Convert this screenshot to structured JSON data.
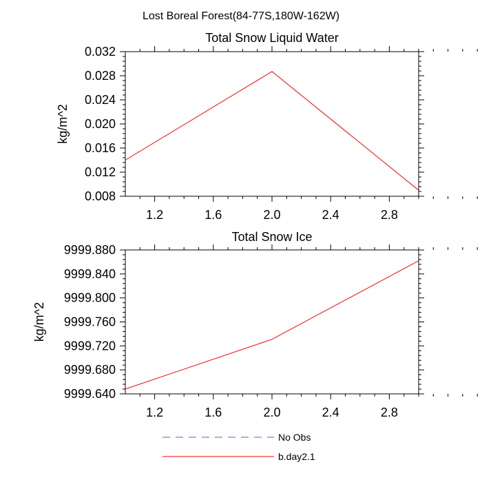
{
  "figure_title": "Lost Boreal Forest(84-77S,180W-162W)",
  "colors": {
    "model": "#ff0000",
    "obs": "#5a5adc",
    "axis": "#000000"
  },
  "chart_data": [
    {
      "type": "line",
      "title": "Total Snow Liquid Water",
      "xlabel": "",
      "ylabel": "kg/m^2",
      "xlim": [
        1.0,
        3.0
      ],
      "ylim": [
        0.008,
        0.032
      ],
      "xticks": [
        1.2,
        1.6,
        2.0,
        2.4,
        2.8
      ],
      "xtick_labels": [
        "1.2",
        "1.6",
        "2.0",
        "2.4",
        "2.8"
      ],
      "yticks": [
        0.008,
        0.012,
        0.016,
        0.02,
        0.024,
        0.028,
        0.032
      ],
      "ytick_labels": [
        "0.008",
        "0.012",
        "0.016",
        "0.020",
        "0.024",
        "0.028",
        "0.032"
      ],
      "series": [
        {
          "name": "b.day2.1",
          "x": [
            1,
            2,
            3
          ],
          "values": [
            0.014,
            0.0287,
            0.009
          ]
        }
      ]
    },
    {
      "type": "line",
      "title": "Total Snow Ice",
      "xlabel": "",
      "ylabel": "kg/m^2",
      "xlim": [
        1.0,
        3.0
      ],
      "ylim": [
        9999.64,
        9999.88
      ],
      "xticks": [
        1.2,
        1.6,
        2.0,
        2.4,
        2.8
      ],
      "xtick_labels": [
        "1.2",
        "1.6",
        "2.0",
        "2.4",
        "2.8"
      ],
      "yticks": [
        9999.64,
        9999.68,
        9999.72,
        9999.76,
        9999.8,
        9999.84,
        9999.88
      ],
      "ytick_labels": [
        "9999.640",
        "9999.680",
        "9999.720",
        "9999.760",
        "9999.800",
        "9999.840",
        "9999.880"
      ],
      "series": [
        {
          "name": "b.day2.1",
          "x": [
            1,
            2,
            3
          ],
          "values": [
            9999.648,
            9999.731,
            9999.862
          ]
        }
      ]
    }
  ],
  "legend": {
    "position": "bottom-center",
    "items": [
      {
        "label": "No Obs",
        "style": "dashed",
        "color_key": "obs"
      },
      {
        "label": "b.day2.1",
        "style": "solid",
        "color_key": "model"
      }
    ]
  }
}
